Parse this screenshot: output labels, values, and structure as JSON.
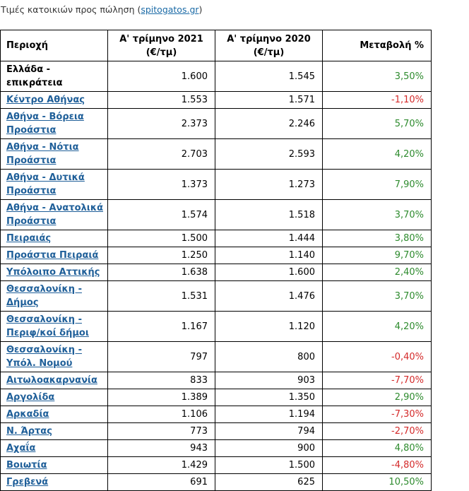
{
  "caption": {
    "prefix": "Τιμές κατοικιών προς πώληση (",
    "link": "spitogatos.gr",
    "suffix": ")"
  },
  "table": {
    "headers": [
      "Περιοχή",
      "Α' τρίμηνο 2021 (€/τμ)",
      "Α' τρίμηνο 2020 (€/τμ)",
      "Μεταβολή %"
    ],
    "rows": [
      {
        "region": "Ελλάδα - επικράτεια",
        "link": false,
        "q2021": "1.600",
        "q2020": "1.545",
        "change": "3,50%",
        "trend": "pos"
      },
      {
        "region": "Κέντρο Αθήνας",
        "link": true,
        "q2021": "1.553",
        "q2020": "1.571",
        "change": "-1,10%",
        "trend": "neg"
      },
      {
        "region": "Αθήνα - Βόρεια Προάστια",
        "link": true,
        "q2021": "2.373",
        "q2020": "2.246",
        "change": "5,70%",
        "trend": "pos"
      },
      {
        "region": "Αθήνα - Νότια Προάστια",
        "link": true,
        "q2021": "2.703",
        "q2020": "2.593",
        "change": "4,20%",
        "trend": "pos"
      },
      {
        "region": "Αθήνα - Δυτικά Προάστια",
        "link": true,
        "q2021": "1.373",
        "q2020": "1.273",
        "change": "7,90%",
        "trend": "pos"
      },
      {
        "region": "Αθήνα - Ανατολικά Προάστια",
        "link": true,
        "q2021": "1.574",
        "q2020": "1.518",
        "change": "3,70%",
        "trend": "pos"
      },
      {
        "region": "Πειραιάς",
        "link": true,
        "q2021": "1.500",
        "q2020": "1.444",
        "change": "3,80%",
        "trend": "pos"
      },
      {
        "region": "Προάστια Πειραιά",
        "link": true,
        "q2021": "1.250",
        "q2020": "1.140",
        "change": "9,70%",
        "trend": "pos"
      },
      {
        "region": "Υπόλοιπο Αττικής",
        "link": true,
        "q2021": "1.638",
        "q2020": "1.600",
        "change": "2,40%",
        "trend": "pos"
      },
      {
        "region": "Θεσσαλονίκη - Δήμος",
        "link": true,
        "q2021": "1.531",
        "q2020": "1.476",
        "change": "3,70%",
        "trend": "pos"
      },
      {
        "region": "Θεσσαλονίκη - Περιφ/κοί δήμοι",
        "link": true,
        "q2021": "1.167",
        "q2020": "1.120",
        "change": "4,20%",
        "trend": "pos"
      },
      {
        "region": "Θεσσαλονίκη - Υπόλ. Νομού",
        "link": true,
        "q2021": "797",
        "q2020": "800",
        "change": "-0,40%",
        "trend": "neg"
      },
      {
        "region": "Αιτωλοακαρνανία",
        "link": true,
        "q2021": "833",
        "q2020": "903",
        "change": "-7,70%",
        "trend": "neg"
      },
      {
        "region": "Αργολίδα",
        "link": true,
        "q2021": "1.389",
        "q2020": "1.350",
        "change": "2,90%",
        "trend": "pos"
      },
      {
        "region": "Αρκαδία",
        "link": true,
        "q2021": "1.106",
        "q2020": "1.194",
        "change": "-7,30%",
        "trend": "neg"
      },
      {
        "region": "Ν. Άρτας",
        "link": true,
        "q2021": "773",
        "q2020": "794",
        "change": "-2,70%",
        "trend": "neg"
      },
      {
        "region": "Αχαΐα",
        "link": true,
        "q2021": "943",
        "q2020": "900",
        "change": "4,80%",
        "trend": "pos"
      },
      {
        "region": "Βοιωτία",
        "link": true,
        "q2021": "1.429",
        "q2020": "1.500",
        "change": "-4,80%",
        "trend": "neg"
      },
      {
        "region": "Γρεβενά",
        "link": true,
        "q2021": "691",
        "q2020": "625",
        "change": "10,50%",
        "trend": "pos"
      }
    ]
  },
  "colors": {
    "positive": "#2e8b2e",
    "negative": "#d42a2a",
    "link": "#1f5f99"
  }
}
